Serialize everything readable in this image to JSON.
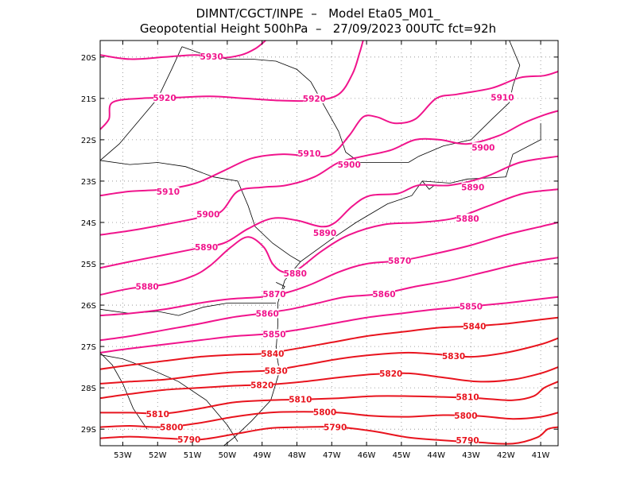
{
  "title_line1": "DIMNT/CGCT/INPE  –   Model Eta05_M01_",
  "title_line2": "Geopotential Height 500hPa  –   27/09/2023 00UTC fct=92h",
  "lat_labels": [
    "20S",
    "21S",
    "22S",
    "23S",
    "24S",
    "25S",
    "26S",
    "27S",
    "28S",
    "29S"
  ],
  "lon_labels": [
    "53W",
    "52W",
    "51W",
    "50W",
    "49W",
    "48W",
    "47W",
    "46W",
    "45W",
    "44W",
    "43W",
    "42W",
    "41W"
  ],
  "colors": {
    "magenta": "#f0148c",
    "red": "#e8141e",
    "coast": "#000000"
  },
  "contours": [
    {
      "value": 5930,
      "labels": [
        {
          "text": "5930",
          "lon": -50.45,
          "lat": -19.98
        }
      ]
    },
    {
      "value": 5920,
      "labels": [
        {
          "text": "5920",
          "lon": -51.8,
          "lat": -20.98
        },
        {
          "text": "5920",
          "lon": -47.5,
          "lat": -21.0
        }
      ]
    },
    {
      "value": 5910,
      "labels": [
        {
          "text": "5910",
          "lon": -51.7,
          "lat": -23.25
        },
        {
          "text": "5910",
          "lon": -47.65,
          "lat": -22.33
        },
        {
          "text": "5910",
          "lon": -42.1,
          "lat": -20.97
        }
      ]
    },
    {
      "value": 5900,
      "labels": [
        {
          "text": "5900",
          "lon": -50.55,
          "lat": -23.8
        },
        {
          "text": "5900",
          "lon": -46.5,
          "lat": -22.6
        },
        {
          "text": "5900",
          "lon": -42.65,
          "lat": -22.18
        }
      ]
    },
    {
      "value": 5890,
      "labels": [
        {
          "text": "5890",
          "lon": -50.6,
          "lat": -24.6
        },
        {
          "text": "5890",
          "lon": -47.2,
          "lat": -24.25
        },
        {
          "text": "5890",
          "lon": -42.95,
          "lat": -23.15
        }
      ]
    },
    {
      "value": 5880,
      "labels": [
        {
          "text": "5880",
          "lon": -52.3,
          "lat": -25.55
        },
        {
          "text": "5880",
          "lon": -48.05,
          "lat": -25.23
        },
        {
          "text": "5880",
          "lon": -43.1,
          "lat": -23.9
        }
      ]
    },
    {
      "value": 5870,
      "labels": [
        {
          "text": "5870",
          "lon": -48.65,
          "lat": -25.73
        },
        {
          "text": "5870",
          "lon": -45.05,
          "lat": -24.92
        }
      ]
    },
    {
      "value": 5860,
      "labels": [
        {
          "text": "5860",
          "lon": -48.85,
          "lat": -26.2
        },
        {
          "text": "5860",
          "lon": -45.5,
          "lat": -25.73
        }
      ]
    },
    {
      "value": 5850,
      "labels": [
        {
          "text": "5850",
          "lon": -48.65,
          "lat": -26.7
        },
        {
          "text": "5850",
          "lon": -43.0,
          "lat": -26.03
        }
      ]
    },
    {
      "value": 5840,
      "labels": [
        {
          "text": "5840",
          "lon": -48.7,
          "lat": -27.17
        },
        {
          "text": "5840",
          "lon": -42.9,
          "lat": -26.51
        }
      ]
    },
    {
      "value": 5830,
      "labels": [
        {
          "text": "5830",
          "lon": -48.6,
          "lat": -27.58
        },
        {
          "text": "5830",
          "lon": -43.5,
          "lat": -27.23
        }
      ]
    },
    {
      "value": 5820,
      "labels": [
        {
          "text": "5820",
          "lon": -49.0,
          "lat": -27.93
        },
        {
          "text": "5820",
          "lon": -45.3,
          "lat": -27.65
        }
      ]
    },
    {
      "value": 5810,
      "labels": [
        {
          "text": "5810",
          "lon": -52.0,
          "lat": -28.63
        },
        {
          "text": "5810",
          "lon": -47.9,
          "lat": -28.28
        },
        {
          "text": "5810",
          "lon": -43.1,
          "lat": -28.22
        }
      ]
    },
    {
      "value": 5800,
      "labels": [
        {
          "text": "5800",
          "lon": -51.6,
          "lat": -28.95
        },
        {
          "text": "5800",
          "lon": -47.2,
          "lat": -28.58
        },
        {
          "text": "5800",
          "lon": -43.15,
          "lat": -28.67
        }
      ]
    },
    {
      "value": 5790,
      "labels": [
        {
          "text": "5790",
          "lon": -51.1,
          "lat": -29.25
        },
        {
          "text": "5790",
          "lon": -46.9,
          "lat": -28.95
        },
        {
          "text": "5790",
          "lon": -43.1,
          "lat": -29.27
        }
      ]
    }
  ]
}
